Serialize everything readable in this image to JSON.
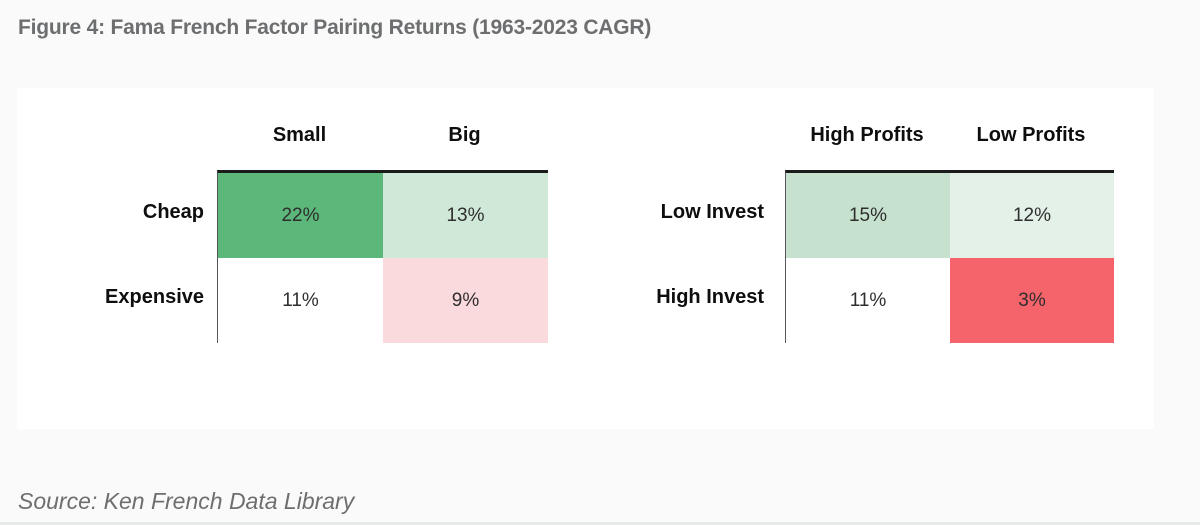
{
  "title": "Figure 4: Fama French Factor Pairing Returns (1963-2023 CAGR)",
  "source": "Source: Ken French Data Library",
  "colors": {
    "page_bg": "#fafafa",
    "card_bg": "#ffffff",
    "title_gray": "#6d6e70",
    "label_black": "#0e0e0e",
    "cell_text": "#2e2e2e",
    "grid_top_border": "#1b1b1b",
    "strong_green": "#5cb87a",
    "light_green": "#d0e8d8",
    "medium_green": "#c6e2ce",
    "pale_green": "#e4f1e8",
    "pale_pink": "#fbdade",
    "strong_red": "#f5636b"
  },
  "chart_data": [
    {
      "type": "heatmap",
      "title": "Figure 4: Fama French Factor Pairing Returns (1963-2023 CAGR)",
      "columns": [
        "Small",
        "Big"
      ],
      "rows": [
        "Cheap",
        "Expensive"
      ],
      "values": [
        [
          22,
          13
        ],
        [
          11,
          9
        ]
      ],
      "labels": [
        [
          "22%",
          "13%"
        ],
        [
          "11%",
          "9%"
        ]
      ],
      "cell_colors": [
        [
          "#5cb87a",
          "#d0e8d8"
        ],
        [
          "#ffffff",
          "#fbdade"
        ]
      ],
      "unit": "%"
    },
    {
      "type": "heatmap",
      "title": "Figure 4: Fama French Factor Pairing Returns (1963-2023 CAGR)",
      "columns": [
        "High Profits",
        "Low Profits"
      ],
      "rows": [
        "Low Invest",
        "High Invest"
      ],
      "values": [
        [
          15,
          12
        ],
        [
          11,
          3
        ]
      ],
      "labels": [
        [
          "15%",
          "12%"
        ],
        [
          "11%",
          "3%"
        ]
      ],
      "cell_colors": [
        [
          "#c6e2ce",
          "#e4f1e8"
        ],
        [
          "#ffffff",
          "#f5636b"
        ]
      ],
      "unit": "%"
    }
  ]
}
